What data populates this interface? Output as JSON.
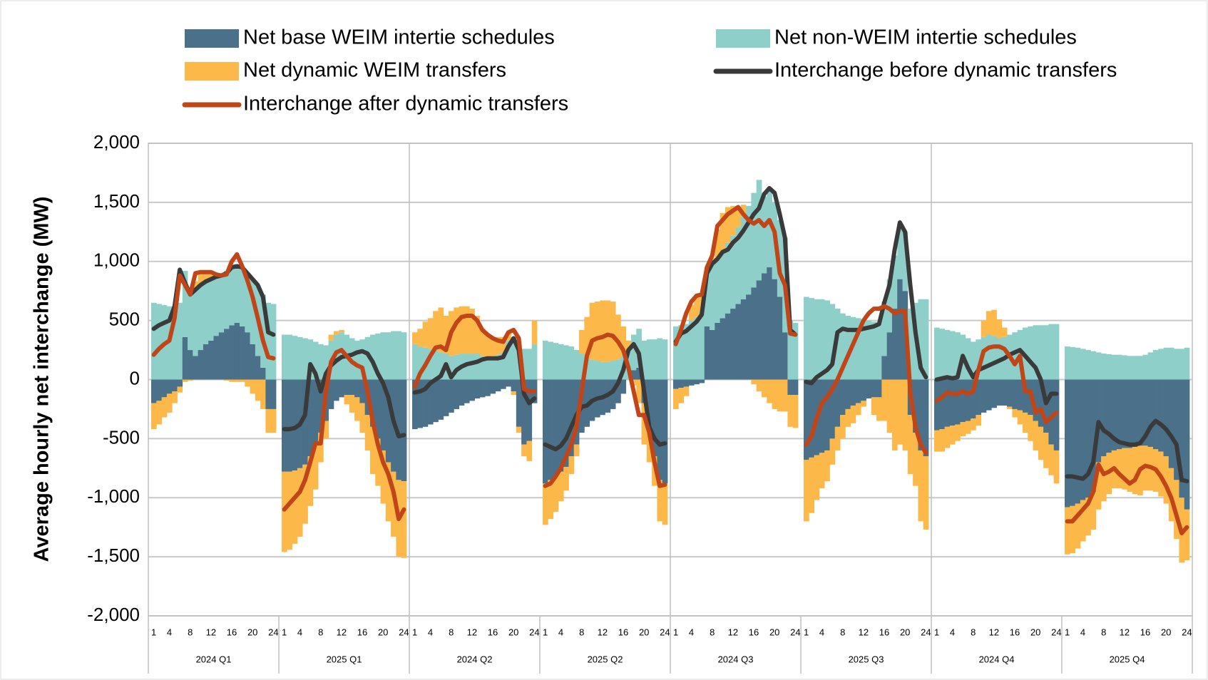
{
  "chart_data": {
    "type": "bar",
    "ylabel": "Average hourly net interchange (MW)",
    "ylim": [
      -2000,
      2000
    ],
    "yticks": [
      {
        "value": -2000,
        "label": "-2,000"
      },
      {
        "value": -1500,
        "label": "-1,500"
      },
      {
        "value": -1000,
        "label": "-1,000"
      },
      -500,
      0,
      500,
      {
        "value": 1000,
        "label": "1,000"
      },
      {
        "value": 1500,
        "label": "1,500"
      },
      {
        "value": 2000,
        "label": "2,000"
      }
    ],
    "grid": true,
    "categories": [
      1,
      null,
      null,
      4,
      null,
      null,
      null,
      8,
      null,
      null,
      null,
      12,
      null,
      null,
      null,
      16,
      null,
      null,
      null,
      20,
      null,
      null,
      null,
      24
    ],
    "groups": [
      "2024 Q1",
      "2025 Q1",
      "2024 Q2",
      "2025 Q2",
      "2024 Q3",
      "2025 Q3",
      "2024 Q4",
      "2025 Q4"
    ],
    "series": [
      {
        "name": "Net base WEIM intertie schedules",
        "type": "bar",
        "color": "#4a7189",
        "values": [
          [
            -200,
            -180,
            -150,
            -120,
            -100,
            -60,
            360,
            250,
            200,
            250,
            300,
            330,
            370,
            400,
            430,
            460,
            480,
            450,
            400,
            300,
            200,
            100,
            -250,
            -250
          ],
          [
            -780,
            -780,
            -770,
            -750,
            -720,
            -650,
            -550,
            -450,
            -350,
            -250,
            -180,
            -150,
            -130,
            -130,
            -150,
            -200,
            -300,
            -400,
            -500,
            -600,
            -700,
            -780,
            -850,
            -860
          ],
          [
            -420,
            -410,
            -400,
            -380,
            -360,
            -340,
            -310,
            -280,
            -250,
            -220,
            -200,
            -180,
            -160,
            -150,
            -140,
            -120,
            -100,
            -80,
            -60,
            -100,
            -400,
            -550,
            -520,
            -200
          ],
          [
            -880,
            -850,
            -820,
            -780,
            -740,
            -650,
            -550,
            -450,
            -400,
            -350,
            -320,
            -300,
            -280,
            -250,
            -200,
            -120,
            0,
            80,
            100,
            -200,
            -400,
            -650,
            -850,
            -880
          ],
          [
            -80,
            -70,
            -60,
            -50,
            -40,
            -30,
            450,
            420,
            480,
            520,
            560,
            600,
            640,
            680,
            720,
            780,
            840,
            900,
            950,
            850,
            700,
            400,
            -130,
            -130
          ],
          [
            -680,
            -660,
            -640,
            -620,
            -600,
            -500,
            -400,
            -300,
            -250,
            -220,
            -200,
            -180,
            -160,
            -150,
            -150,
            200,
            400,
            600,
            850,
            750,
            -300,
            -450,
            -600,
            -650
          ],
          [
            -430,
            -420,
            -400,
            -390,
            -380,
            -360,
            -350,
            -330,
            -300,
            -280,
            -260,
            -240,
            -220,
            -220,
            -230,
            -250,
            -260,
            -280,
            -300,
            -350,
            -400,
            -450,
            -550,
            -600
          ],
          [
            -1080,
            -1070,
            -1050,
            -1020,
            -1000,
            -950,
            -700,
            -650,
            -620,
            -600,
            -590,
            -580,
            -580,
            -570,
            -560,
            -560,
            -570,
            -590,
            -610,
            -650,
            -750,
            -850,
            -1000,
            -1100
          ]
        ]
      },
      {
        "name": "Net non-WEIM intertie schedules",
        "type": "bar",
        "color": "#8ecfc9",
        "values": [
          [
            650,
            640,
            630,
            620,
            620,
            650,
            560,
            480,
            560,
            560,
            530,
            510,
            490,
            490,
            490,
            480,
            470,
            500,
            500,
            550,
            600,
            620,
            650,
            640
          ],
          [
            380,
            380,
            370,
            360,
            350,
            340,
            320,
            300,
            290,
            330,
            380,
            400,
            380,
            350,
            330,
            340,
            360,
            380,
            390,
            400,
            400,
            410,
            410,
            400
          ],
          [
            300,
            280,
            270,
            260,
            250,
            230,
            220,
            200,
            210,
            220,
            220,
            220,
            220,
            200,
            190,
            200,
            210,
            230,
            330,
            360,
            320,
            260,
            260,
            300
          ],
          [
            330,
            320,
            310,
            300,
            290,
            280,
            250,
            220,
            180,
            170,
            160,
            150,
            150,
            160,
            170,
            200,
            250,
            300,
            330,
            330,
            340,
            340,
            350,
            340
          ],
          [
            450,
            460,
            470,
            500,
            530,
            580,
            450,
            560,
            540,
            560,
            600,
            620,
            650,
            700,
            750,
            800,
            850,
            650,
            650,
            650,
            650,
            800,
            500,
            480
          ],
          [
            700,
            690,
            680,
            680,
            670,
            640,
            600,
            560,
            540,
            530,
            520,
            510,
            500,
            490,
            480,
            460,
            450,
            450,
            470,
            500,
            600,
            650,
            680,
            680
          ],
          [
            440,
            430,
            420,
            410,
            400,
            380,
            350,
            320,
            340,
            360,
            380,
            370,
            350,
            360,
            380,
            400,
            420,
            440,
            450,
            460,
            460,
            460,
            470,
            470
          ],
          [
            280,
            275,
            270,
            260,
            250,
            240,
            230,
            220,
            215,
            210,
            210,
            205,
            200,
            200,
            200,
            210,
            230,
            250,
            260,
            270,
            270,
            260,
            260,
            270
          ]
        ]
      },
      {
        "name": "Net dynamic WEIM transfers",
        "type": "bar",
        "color": "#fdb84a",
        "values": [
          [
            -220,
            -200,
            -170,
            -160,
            -100,
            -50,
            -20,
            -10,
            70,
            100,
            80,
            80,
            40,
            10,
            -10,
            -20,
            -20,
            -20,
            -60,
            -120,
            -180,
            -250,
            -200,
            -200
          ],
          [
            -680,
            -660,
            -620,
            -580,
            -500,
            -420,
            -380,
            -250,
            -150,
            50,
            30,
            20,
            -80,
            -150,
            -200,
            -250,
            -300,
            -400,
            -400,
            -450,
            -500,
            -550,
            -650,
            -650
          ],
          [
            100,
            150,
            220,
            260,
            330,
            380,
            320,
            380,
            400,
            400,
            400,
            380,
            320,
            230,
            180,
            150,
            150,
            130,
            70,
            -30,
            -50,
            -100,
            -170,
            200
          ],
          [
            -350,
            -330,
            -300,
            -250,
            -200,
            -150,
            -100,
            200,
            350,
            480,
            500,
            520,
            520,
            500,
            380,
            250,
            80,
            -50,
            -200,
            -350,
            -300,
            -250,
            -350,
            -350
          ],
          [
            -170,
            -130,
            -80,
            130,
            180,
            150,
            50,
            50,
            250,
            330,
            300,
            250,
            150,
            100,
            0,
            -40,
            -100,
            -150,
            -200,
            -250,
            -270,
            -270,
            -270,
            -280
          ],
          [
            -520,
            -470,
            -380,
            -300,
            -260,
            -220,
            -200,
            -200,
            -150,
            -150,
            -100,
            -50,
            0,
            -150,
            -200,
            -350,
            -450,
            -600,
            -550,
            -600,
            -500,
            -450,
            -600,
            -620
          ],
          [
            -180,
            -190,
            -180,
            -160,
            -140,
            -120,
            -110,
            -100,
            -90,
            140,
            200,
            220,
            160,
            80,
            -20,
            -70,
            -120,
            -170,
            -220,
            -250,
            -280,
            -300,
            -260,
            -280
          ],
          [
            -400,
            -400,
            -380,
            -350,
            -320,
            -320,
            -400,
            -380,
            -350,
            -320,
            -330,
            -350,
            -370,
            -400,
            -420,
            -380,
            -370,
            -360,
            -380,
            -400,
            -450,
            -500,
            -550,
            -430
          ]
        ]
      },
      {
        "name": "Interchange before dynamic transfers",
        "type": "line",
        "color": "#3a3a3a",
        "values": [
          [
            430,
            460,
            480,
            500,
            620,
            930,
            820,
            720,
            760,
            800,
            830,
            850,
            870,
            880,
            900,
            950,
            960,
            950,
            900,
            850,
            800,
            700,
            400,
            380
          ],
          [
            -420,
            -420,
            -410,
            -380,
            -300,
            130,
            50,
            -100,
            50,
            120,
            160,
            190,
            200,
            210,
            230,
            240,
            220,
            150,
            50,
            -30,
            -150,
            -350,
            -480,
            -470
          ],
          [
            -110,
            -100,
            -80,
            -30,
            0,
            30,
            130,
            20,
            80,
            110,
            130,
            140,
            150,
            170,
            180,
            180,
            180,
            190,
            280,
            350,
            250,
            -120,
            -200,
            -160
          ],
          [
            -550,
            -570,
            -590,
            -560,
            -500,
            -400,
            -300,
            -230,
            -220,
            -180,
            -160,
            -150,
            -130,
            -100,
            -30,
            80,
            250,
            300,
            220,
            -100,
            -400,
            -500,
            -550,
            -540
          ],
          [
            320,
            390,
            410,
            450,
            490,
            550,
            900,
            980,
            1020,
            1080,
            1100,
            1160,
            1200,
            1260,
            1330,
            1400,
            1450,
            1570,
            1620,
            1580,
            1400,
            1200,
            420,
            380
          ],
          [
            -20,
            -30,
            20,
            50,
            80,
            130,
            400,
            430,
            420,
            420,
            420,
            430,
            440,
            450,
            470,
            650,
            800,
            1100,
            1330,
            1250,
            800,
            400,
            100,
            20
          ],
          [
            0,
            10,
            20,
            10,
            20,
            200,
            100,
            20,
            80,
            100,
            120,
            140,
            160,
            180,
            210,
            230,
            250,
            200,
            150,
            100,
            0,
            -200,
            -120,
            -120
          ],
          [
            -820,
            -820,
            -830,
            -840,
            -800,
            -700,
            -360,
            -430,
            -460,
            -500,
            -530,
            -540,
            -550,
            -550,
            -540,
            -480,
            -400,
            -350,
            -380,
            -420,
            -480,
            -550,
            -850,
            -860
          ]
        ]
      },
      {
        "name": "Interchange after dynamic transfers",
        "type": "line",
        "color": "#c0461a",
        "values": [
          [
            210,
            260,
            300,
            330,
            520,
            880,
            800,
            720,
            900,
            910,
            910,
            910,
            890,
            880,
            890,
            1000,
            1060,
            960,
            840,
            700,
            520,
            330,
            190,
            180
          ],
          [
            -1100,
            -1050,
            -1000,
            -950,
            -850,
            -700,
            -540,
            -540,
            -100,
            150,
            230,
            250,
            200,
            150,
            120,
            100,
            -100,
            -350,
            -550,
            -700,
            -800,
            -950,
            -1180,
            -1100
          ],
          [
            -60,
            50,
            120,
            200,
            270,
            280,
            250,
            400,
            480,
            530,
            540,
            540,
            500,
            420,
            380,
            350,
            330,
            320,
            400,
            420,
            350,
            -80,
            -100,
            -100
          ],
          [
            -900,
            -880,
            -820,
            -750,
            -650,
            -550,
            -400,
            -100,
            200,
            330,
            350,
            360,
            380,
            370,
            320,
            250,
            100,
            -100,
            -300,
            -300,
            -450,
            -700,
            -900,
            -890
          ],
          [
            300,
            420,
            560,
            660,
            710,
            720,
            950,
            1050,
            1300,
            1350,
            1400,
            1430,
            1460,
            1400,
            1350,
            1320,
            1350,
            1300,
            1350,
            1250,
            900,
            800,
            390,
            380
          ],
          [
            -550,
            -480,
            -330,
            -200,
            -150,
            -80,
            0,
            100,
            200,
            300,
            400,
            500,
            560,
            600,
            600,
            620,
            600,
            560,
            580,
            580,
            -100,
            -400,
            -550,
            -620
          ],
          [
            -180,
            -150,
            -110,
            -120,
            -120,
            -100,
            -120,
            -100,
            80,
            240,
            270,
            280,
            280,
            260,
            200,
            130,
            200,
            -100,
            -100,
            -280,
            -250,
            -360,
            -320,
            -280
          ],
          [
            -1200,
            -1200,
            -1150,
            -1100,
            -1050,
            -950,
            -720,
            -800,
            -780,
            -750,
            -800,
            -840,
            -880,
            -850,
            -760,
            -730,
            -740,
            -760,
            -820,
            -900,
            -1000,
            -1150,
            -1300,
            -1250
          ]
        ]
      }
    ]
  }
}
